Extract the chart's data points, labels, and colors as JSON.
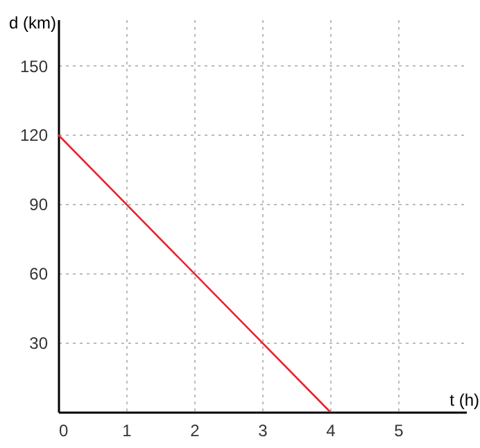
{
  "chart_data": {
    "type": "line",
    "xlabel": "t (h)",
    "ylabel": "d (km)",
    "x": [
      0,
      4
    ],
    "series": [
      {
        "color": "#e8212a",
        "values": [
          120,
          0
        ]
      }
    ],
    "xlim": [
      0,
      6
    ],
    "xticks": [
      {
        "value": 0,
        "label": "0"
      },
      1,
      2,
      3,
      4,
      5
    ],
    "ylim": [
      0,
      170
    ],
    "yticks": [
      30,
      60,
      90,
      120,
      150
    ],
    "grid": true,
    "marker": "none",
    "line_style": "solid"
  }
}
